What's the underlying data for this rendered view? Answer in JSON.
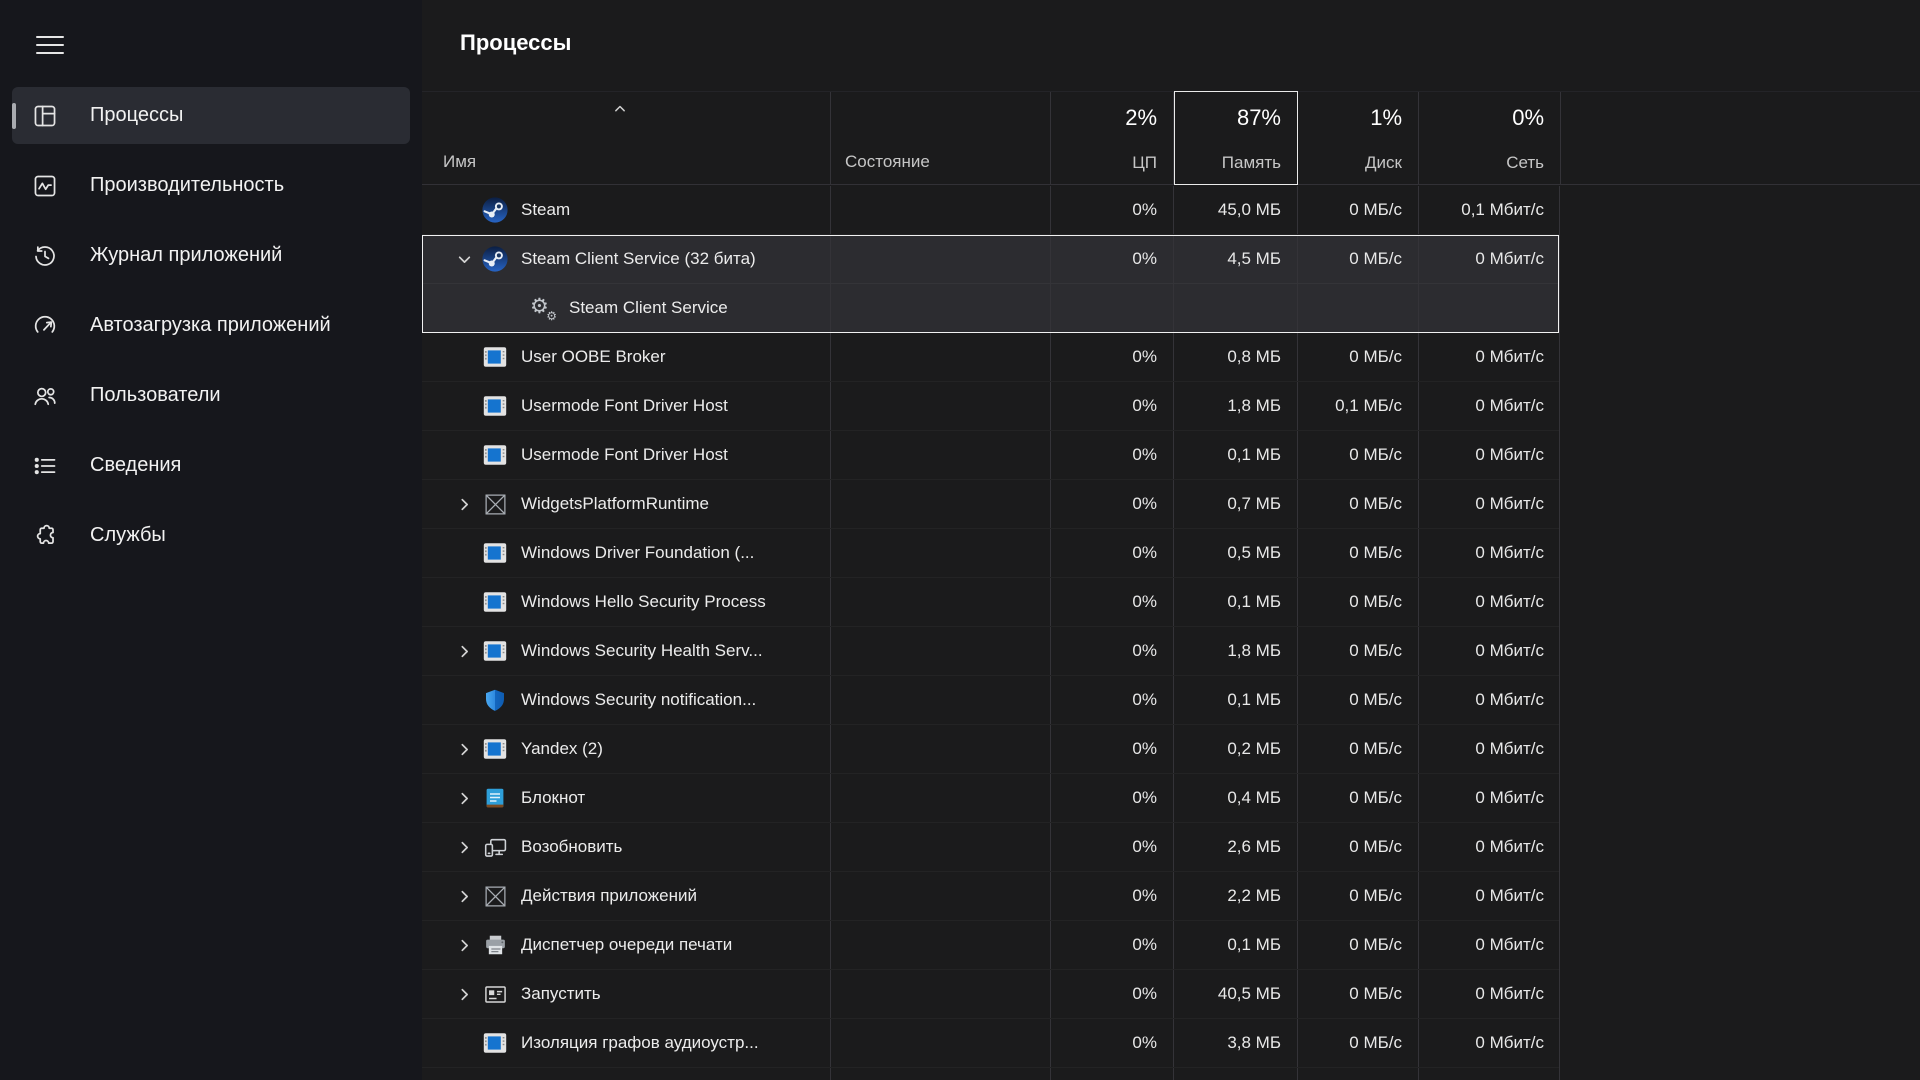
{
  "header": {
    "title": "Процессы"
  },
  "colors": {
    "sidebar_bg": "#16171c",
    "content_bg": "#1b1b1c",
    "selected_item_bg": "#2a2c33",
    "selection_indicator": "#a9abb0",
    "selection_border": "#f2f2f2",
    "memory_header_border": "#ebebeb",
    "app_window_blue": "#1574cf",
    "shield_blue": "#2e8ae0",
    "notepad_blue": "#2e9fd9"
  },
  "sidebar": {
    "menu_button_icon": "hamburger-icon",
    "items": [
      {
        "id": "processes",
        "label": "Процессы",
        "icon": "processes-icon",
        "selected": true
      },
      {
        "id": "performance",
        "label": "Производительность",
        "icon": "performance-icon",
        "selected": false
      },
      {
        "id": "app-history",
        "label": "Журнал приложений",
        "icon": "app-history-icon",
        "selected": false
      },
      {
        "id": "startup-apps",
        "label": "Автозагрузка приложений",
        "icon": "startup-apps-icon",
        "selected": false
      },
      {
        "id": "users",
        "label": "Пользователи",
        "icon": "users-icon",
        "selected": false
      },
      {
        "id": "details",
        "label": "Сведения",
        "icon": "details-icon",
        "selected": false
      },
      {
        "id": "services",
        "label": "Службы",
        "icon": "services-icon",
        "selected": false
      }
    ]
  },
  "table": {
    "sort": {
      "column": "name",
      "direction": "asc",
      "icon": "chevron-up-icon"
    },
    "columns": {
      "name": {
        "label": "Имя"
      },
      "status": {
        "label": "Состояние"
      },
      "cpu": {
        "label": "ЦП",
        "value": "2%"
      },
      "memory": {
        "label": "Память",
        "value": "87%",
        "selected": true
      },
      "disk": {
        "label": "Диск",
        "value": "1%"
      },
      "network": {
        "label": "Сеть",
        "value": "0%"
      }
    },
    "rows": [
      {
        "name": "Steam",
        "icon": "steam-icon",
        "expander": null,
        "child": false,
        "selected": false,
        "status": "",
        "cpu": "0%",
        "memory": "45,0 МБ",
        "disk": "0 МБ/с",
        "network": "0,1 Мбит/с"
      },
      {
        "name": "Steam Client Service (32 бита)",
        "icon": "steam-icon",
        "expander": "expanded",
        "child": false,
        "selected": true,
        "status": "",
        "cpu": "0%",
        "memory": "4,5 МБ",
        "disk": "0 МБ/с",
        "network": "0 Мбит/с"
      },
      {
        "name": "Steam Client Service",
        "icon": "gears-icon",
        "expander": null,
        "child": true,
        "selected": true,
        "status": "",
        "cpu": "",
        "memory": "",
        "disk": "",
        "network": ""
      },
      {
        "name": "User OOBE Broker",
        "icon": "app-window-icon",
        "expander": null,
        "child": false,
        "selected": false,
        "status": "",
        "cpu": "0%",
        "memory": "0,8 МБ",
        "disk": "0 МБ/с",
        "network": "0 Мбит/с"
      },
      {
        "name": "Usermode Font Driver Host",
        "icon": "app-window-icon",
        "expander": null,
        "child": false,
        "selected": false,
        "status": "",
        "cpu": "0%",
        "memory": "1,8 МБ",
        "disk": "0,1 МБ/с",
        "network": "0 Мбит/с"
      },
      {
        "name": "Usermode Font Driver Host",
        "icon": "app-window-icon",
        "expander": null,
        "child": false,
        "selected": false,
        "status": "",
        "cpu": "0%",
        "memory": "0,1 МБ",
        "disk": "0 МБ/с",
        "network": "0 Мбит/с"
      },
      {
        "name": "WidgetsPlatformRuntime",
        "icon": "default-app-icon",
        "expander": "collapsed",
        "child": false,
        "selected": false,
        "status": "",
        "cpu": "0%",
        "memory": "0,7 МБ",
        "disk": "0 МБ/с",
        "network": "0 Мбит/с"
      },
      {
        "name": "Windows Driver Foundation (...",
        "icon": "app-window-icon",
        "expander": null,
        "child": false,
        "selected": false,
        "status": "",
        "cpu": "0%",
        "memory": "0,5 МБ",
        "disk": "0 МБ/с",
        "network": "0 Мбит/с"
      },
      {
        "name": "Windows Hello Security Process",
        "icon": "app-window-icon",
        "expander": null,
        "child": false,
        "selected": false,
        "status": "",
        "cpu": "0%",
        "memory": "0,1 МБ",
        "disk": "0 МБ/с",
        "network": "0 Мбит/с"
      },
      {
        "name": "Windows Security Health Serv...",
        "icon": "app-window-icon",
        "expander": "collapsed",
        "child": false,
        "selected": false,
        "status": "",
        "cpu": "0%",
        "memory": "1,8 МБ",
        "disk": "0 МБ/с",
        "network": "0 Мбит/с"
      },
      {
        "name": "Windows Security notification...",
        "icon": "security-shield-icon",
        "expander": null,
        "child": false,
        "selected": false,
        "status": "",
        "cpu": "0%",
        "memory": "0,1 МБ",
        "disk": "0 МБ/с",
        "network": "0 Мбит/с"
      },
      {
        "name": "Yandex (2)",
        "icon": "app-window-icon",
        "expander": "collapsed",
        "child": false,
        "selected": false,
        "status": "",
        "cpu": "0%",
        "memory": "0,2 МБ",
        "disk": "0 МБ/с",
        "network": "0 Мбит/с"
      },
      {
        "name": "Блокнот",
        "icon": "notepad-icon",
        "expander": "collapsed",
        "child": false,
        "selected": false,
        "status": "",
        "cpu": "0%",
        "memory": "0,4 МБ",
        "disk": "0 МБ/с",
        "network": "0 Мбит/с"
      },
      {
        "name": "Возобновить",
        "icon": "resume-devices-icon",
        "expander": "collapsed",
        "child": false,
        "selected": false,
        "status": "",
        "cpu": "0%",
        "memory": "2,6 МБ",
        "disk": "0 МБ/с",
        "network": "0 Мбит/с"
      },
      {
        "name": "Действия приложений",
        "icon": "default-app-icon",
        "expander": "collapsed",
        "child": false,
        "selected": false,
        "status": "",
        "cpu": "0%",
        "memory": "2,2 МБ",
        "disk": "0 МБ/с",
        "network": "0 Мбит/с"
      },
      {
        "name": "Диспетчер очереди печати",
        "icon": "printer-icon",
        "expander": "collapsed",
        "child": false,
        "selected": false,
        "status": "",
        "cpu": "0%",
        "memory": "0,1 МБ",
        "disk": "0 МБ/с",
        "network": "0 Мбит/с"
      },
      {
        "name": "Запустить",
        "icon": "run-icon",
        "expander": "collapsed",
        "child": false,
        "selected": false,
        "status": "",
        "cpu": "0%",
        "memory": "40,5 МБ",
        "disk": "0 МБ/с",
        "network": "0 Мбит/с"
      },
      {
        "name": "Изоляция графов аудиоустр...",
        "icon": "app-window-icon",
        "expander": null,
        "child": false,
        "selected": false,
        "status": "",
        "cpu": "0%",
        "memory": "3,8 МБ",
        "disk": "0 МБ/с",
        "network": "0 Мбит/с"
      }
    ]
  }
}
